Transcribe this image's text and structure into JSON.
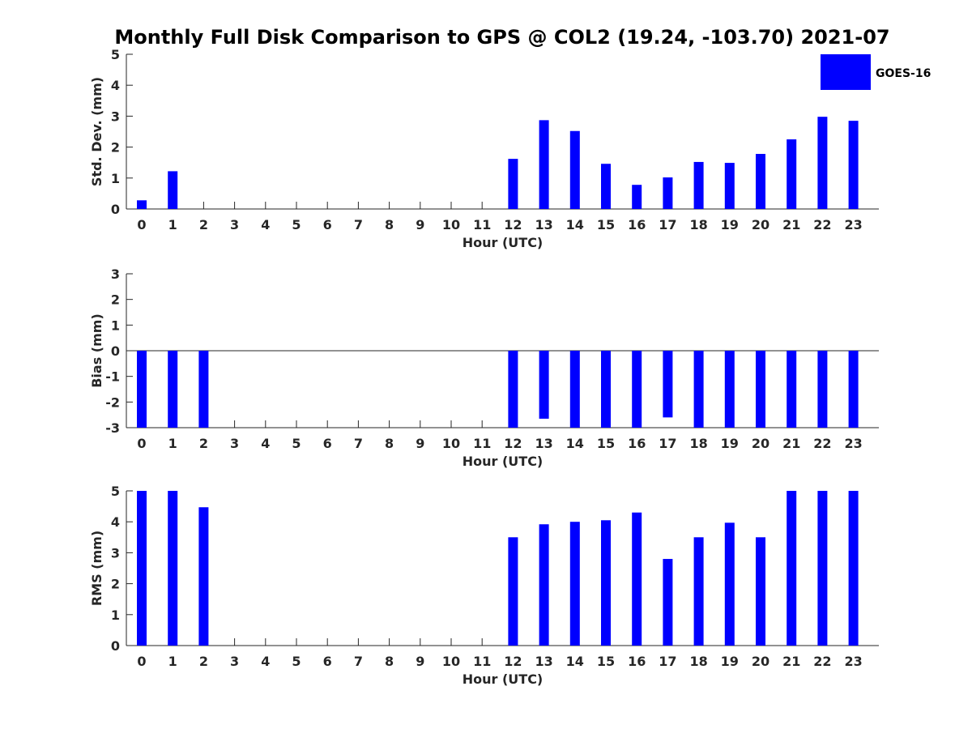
{
  "colors": {
    "bar": "#0000ff",
    "axis": "#262626",
    "background": "#ffffff"
  },
  "chart_data": [
    {
      "type": "bar",
      "title": "Monthly Full Disk Comparison to GPS @ COL2 (19.24, -103.70) 2021-07",
      "xlabel": "Hour (UTC)",
      "ylabel": "Std. Dev. (mm)",
      "ylim": [
        0,
        5
      ],
      "yticks": [
        "0",
        "1",
        "2",
        "3",
        "4",
        "5"
      ],
      "categories": [
        "0",
        "1",
        "2",
        "3",
        "4",
        "5",
        "6",
        "7",
        "8",
        "9",
        "10",
        "11",
        "12",
        "13",
        "14",
        "15",
        "16",
        "17",
        "18",
        "19",
        "20",
        "21",
        "22",
        "23"
      ],
      "series": [
        {
          "name": "GOES-16",
          "values": [
            0.28,
            1.22,
            null,
            null,
            null,
            null,
            null,
            null,
            null,
            null,
            null,
            null,
            1.62,
            2.87,
            2.52,
            1.46,
            0.78,
            1.02,
            1.52,
            1.49,
            1.78,
            2.25,
            2.98,
            2.85
          ]
        }
      ],
      "legend": "top-right",
      "grid": false
    },
    {
      "type": "bar",
      "title": "",
      "xlabel": "Hour (UTC)",
      "ylabel": "Bias (mm)",
      "ylim": [
        -3,
        3
      ],
      "yticks": [
        "-3",
        "-2",
        "-1",
        "0",
        "1",
        "2",
        "3"
      ],
      "categories": [
        "0",
        "1",
        "2",
        "3",
        "4",
        "5",
        "6",
        "7",
        "8",
        "9",
        "10",
        "11",
        "12",
        "13",
        "14",
        "15",
        "16",
        "17",
        "18",
        "19",
        "20",
        "21",
        "22",
        "23"
      ],
      "series": [
        {
          "name": "GOES-16",
          "values": [
            -3,
            -3,
            -3,
            null,
            null,
            null,
            null,
            null,
            null,
            null,
            null,
            null,
            -3,
            -2.65,
            -3,
            -3,
            -3,
            -2.6,
            -3,
            -3,
            -3,
            -3,
            -3,
            -3
          ]
        }
      ],
      "grid": false
    },
    {
      "type": "bar",
      "title": "",
      "xlabel": "Hour (UTC)",
      "ylabel": "RMS (mm)",
      "ylim": [
        0,
        5
      ],
      "yticks": [
        "0",
        "1",
        "2",
        "3",
        "4",
        "5"
      ],
      "categories": [
        "0",
        "1",
        "2",
        "3",
        "4",
        "5",
        "6",
        "7",
        "8",
        "9",
        "10",
        "11",
        "12",
        "13",
        "14",
        "15",
        "16",
        "17",
        "18",
        "19",
        "20",
        "21",
        "22",
        "23"
      ],
      "series": [
        {
          "name": "GOES-16",
          "values": [
            5,
            5,
            4.47,
            null,
            null,
            null,
            null,
            null,
            null,
            null,
            null,
            null,
            3.5,
            3.92,
            4.0,
            4.05,
            4.3,
            2.8,
            3.5,
            3.97,
            3.5,
            5,
            5,
            5
          ]
        }
      ],
      "grid": false
    }
  ]
}
